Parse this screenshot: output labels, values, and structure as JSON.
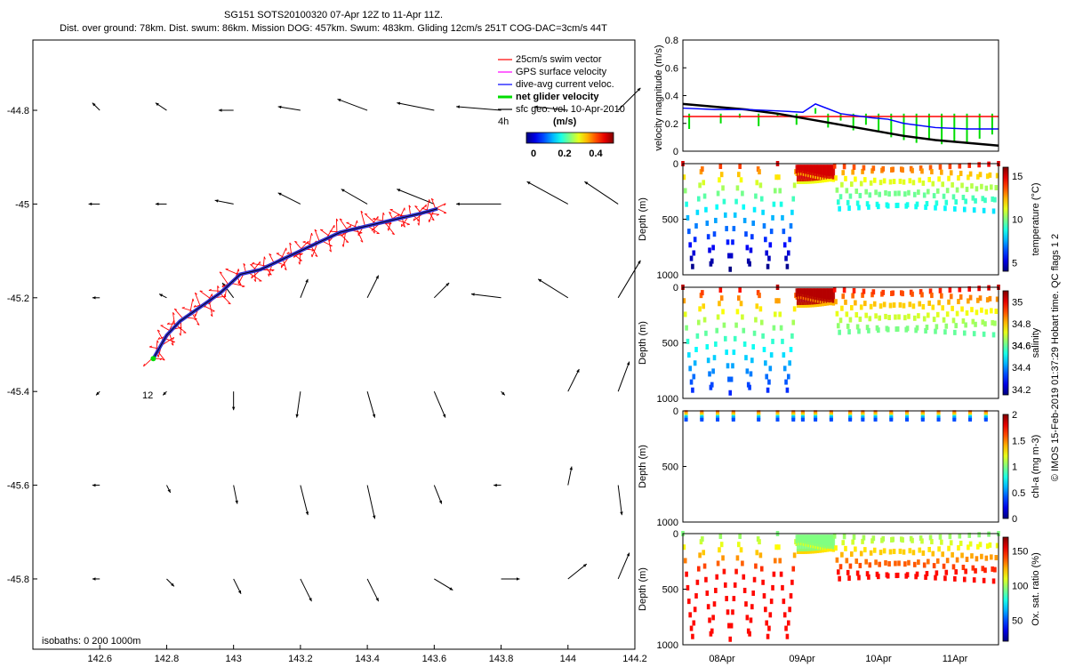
{
  "header": {
    "title_line1": "SG151 SOTS20100320 07-Apr 12Z to 11-Apr 11Z.",
    "title_line2": "Dist. over ground: 78km. Dist. swum: 86km. Mission DOG: 457km. Swum: 483km. Gliding 12cm/s 251T COG-DAC=3cm/s 44T"
  },
  "footer_vertical": "© IMOS 15-Feb-2019 01:37:29 Hobart time. QC flags 1  2",
  "colors": {
    "swim": "#ff0000",
    "gps": "#ff00ff",
    "dac": "#0000ff",
    "net": "#00dd00",
    "geo": "#000000",
    "track": "#3030d0"
  },
  "chart_data": [
    {
      "id": "map",
      "type": "scatter",
      "title": "",
      "xlim": [
        142.4,
        144.2
      ],
      "ylim": [
        -45.95,
        -44.65
      ],
      "xticks": [
        "142.6",
        "142.8",
        "143",
        "143.2",
        "143.4",
        "143.6",
        "143.8",
        "144",
        "144.2"
      ],
      "yticks": [
        "-44.8",
        "-45",
        "-45.2",
        "-45.4",
        "-45.6",
        "-45.8"
      ],
      "legend": {
        "placement": "top-right",
        "entries": [
          "25cm/s swim vector",
          "GPS surface velocity",
          "dive-avg current veloc.",
          "net glider velocity",
          "sfc geo. vel. 10-Apr-2010"
        ]
      },
      "colorbar": {
        "label": "(m/s)",
        "ticks": [
          "0",
          "0.2",
          "0.4"
        ],
        "range": [
          0,
          0.5
        ]
      },
      "annotations": {
        "start_label": "12",
        "end_label": "4h",
        "isobaths": "isobaths: 0    200   1000m"
      },
      "track": {
        "lon": [
          142.76,
          142.8,
          142.84,
          142.9,
          142.96,
          143.02,
          143.08,
          143.14,
          143.2,
          143.26,
          143.32,
          143.38,
          143.44,
          143.5,
          143.56,
          143.61
        ],
        "lat": [
          -45.33,
          -45.28,
          -45.25,
          -45.22,
          -45.19,
          -45.15,
          -45.14,
          -45.12,
          -45.1,
          -45.08,
          -45.06,
          -45.05,
          -45.04,
          -45.03,
          -45.02,
          -45.01
        ]
      },
      "geo_vectors": {
        "lon": [
          142.6,
          142.8,
          143.0,
          143.2,
          143.4,
          143.6,
          143.8,
          144.0,
          144.15
        ],
        "lat": [
          -44.8,
          -45.0,
          -45.2,
          -45.4,
          -45.6,
          -45.8
        ],
        "u": [
          [
            -0.02,
            -0.03,
            -0.04,
            -0.06,
            -0.08,
            -0.1,
            -0.12,
            -0.09,
            0.06
          ],
          [
            -0.03,
            -0.03,
            -0.05,
            -0.06,
            -0.07,
            -0.1,
            -0.12,
            -0.11,
            -0.09
          ],
          [
            -0.02,
            -0.02,
            -0.03,
            0.02,
            0.03,
            0.04,
            -0.08,
            -0.08,
            0.06
          ],
          [
            -0.01,
            -0.01,
            0.0,
            -0.01,
            0.02,
            0.03,
            0.01,
            0.03,
            0.03
          ],
          [
            -0.02,
            0.01,
            0.01,
            0.02,
            0.02,
            0.02,
            -0.02,
            0.01,
            0.01
          ],
          [
            -0.02,
            0.02,
            0.02,
            0.03,
            0.03,
            0.05,
            0.05,
            0.05,
            0.03
          ]
        ],
        "v": [
          [
            0.02,
            0.02,
            0.0,
            0.01,
            0.03,
            0.02,
            0.01,
            0.01,
            0.06
          ],
          [
            0.0,
            0.0,
            0.01,
            0.03,
            0.04,
            0.04,
            0.0,
            0.06,
            0.06
          ],
          [
            0.0,
            0.01,
            0.04,
            0.05,
            0.06,
            0.04,
            0.01,
            0.05,
            0.1
          ],
          [
            -0.01,
            -0.01,
            -0.05,
            -0.07,
            -0.07,
            -0.07,
            -0.01,
            0.06,
            0.08
          ],
          [
            0.0,
            -0.02,
            -0.05,
            -0.08,
            -0.09,
            -0.05,
            0.0,
            0.05,
            -0.08
          ],
          [
            0.0,
            -0.02,
            -0.04,
            -0.06,
            -0.06,
            -0.03,
            0.0,
            0.04,
            0.07
          ]
        ]
      }
    },
    {
      "id": "velocity",
      "type": "line",
      "ylabel": "velocity magnitude (m/s)",
      "xlim": [
        0,
        1
      ],
      "ylim": [
        0,
        0.8
      ],
      "yticks": [
        "0",
        "0.2",
        "0.4",
        "0.6",
        "0.8"
      ],
      "series": [
        {
          "color": "#ff0000",
          "x": [
            0.0,
            0.22,
            0.22,
            1.0
          ],
          "y": [
            0.25,
            0.25,
            0.25,
            0.25
          ]
        },
        {
          "color": "#000000",
          "x": [
            0.0,
            0.1,
            0.2,
            0.3,
            0.4,
            0.5,
            0.6,
            0.7,
            0.8,
            0.9,
            1.0
          ],
          "y": [
            0.34,
            0.32,
            0.3,
            0.27,
            0.23,
            0.19,
            0.15,
            0.11,
            0.08,
            0.06,
            0.04
          ]
        },
        {
          "color": "#0000ff",
          "x": [
            0.0,
            0.1,
            0.2,
            0.3,
            0.38,
            0.42,
            0.5,
            0.6,
            0.65,
            0.7,
            0.8,
            0.9,
            1.0
          ],
          "y": [
            0.31,
            0.3,
            0.3,
            0.29,
            0.28,
            0.34,
            0.27,
            0.24,
            0.23,
            0.2,
            0.17,
            0.16,
            0.16
          ]
        },
        {
          "color": "#00dd00",
          "x": [
            0.02,
            0.06,
            0.12,
            0.18,
            0.24,
            0.3,
            0.36,
            0.42,
            0.46,
            0.5,
            0.54,
            0.58,
            0.62,
            0.66,
            0.7,
            0.74,
            0.78,
            0.82,
            0.86,
            0.9,
            0.94,
            0.98
          ],
          "y": [
            0.16,
            0.27,
            0.2,
            0.24,
            0.18,
            0.25,
            0.19,
            0.31,
            0.17,
            0.22,
            0.15,
            0.19,
            0.14,
            0.1,
            0.08,
            0.06,
            0.08,
            0.05,
            0.07,
            0.06,
            0.09,
            0.12
          ]
        }
      ]
    },
    {
      "id": "temperature",
      "type": "scatter",
      "ylabel": "Depth (m)",
      "clabel": "temperature (°C)",
      "ylim": [
        1000,
        0
      ],
      "yticks": [
        "0",
        "500",
        "1000"
      ],
      "cticks": [
        "5",
        "10",
        "15"
      ],
      "crange": [
        4,
        16
      ],
      "surface_value": 15,
      "deep_value": 4
    },
    {
      "id": "salinity",
      "type": "scatter",
      "ylabel": "Depth (m)",
      "clabel": "salinity",
      "ylim": [
        1000,
        0
      ],
      "yticks": [
        "0",
        "500",
        "1000"
      ],
      "cticks": [
        "34.2",
        "34.4",
        "34.6",
        "34.6",
        "34.8",
        "35"
      ],
      "crange": [
        34.15,
        35.1
      ],
      "surface_value": 35.05,
      "deep_value": 34.3
    },
    {
      "id": "chla",
      "type": "scatter",
      "ylabel": "Depth (m)",
      "clabel": "chl-a (mg m-3)",
      "ylim": [
        1000,
        0
      ],
      "yticks": [
        "0",
        "500",
        "1000"
      ],
      "cticks": [
        "0",
        "0.5",
        "1",
        "1.5",
        "2"
      ],
      "crange": [
        0,
        2
      ]
    },
    {
      "id": "oxygen",
      "type": "scatter",
      "ylabel": "Depth (m)",
      "clabel": "Ox. sat. ratio (%)",
      "ylim": [
        1000,
        0
      ],
      "yticks": [
        "0",
        "500",
        "1000"
      ],
      "cticks": [
        "50",
        "100",
        "150"
      ],
      "crange": [
        20,
        170
      ],
      "surface_value": 95,
      "deep_value": 150,
      "xticks": [
        "08Apr",
        "09Apr",
        "10Apr",
        "11Apr"
      ]
    }
  ]
}
